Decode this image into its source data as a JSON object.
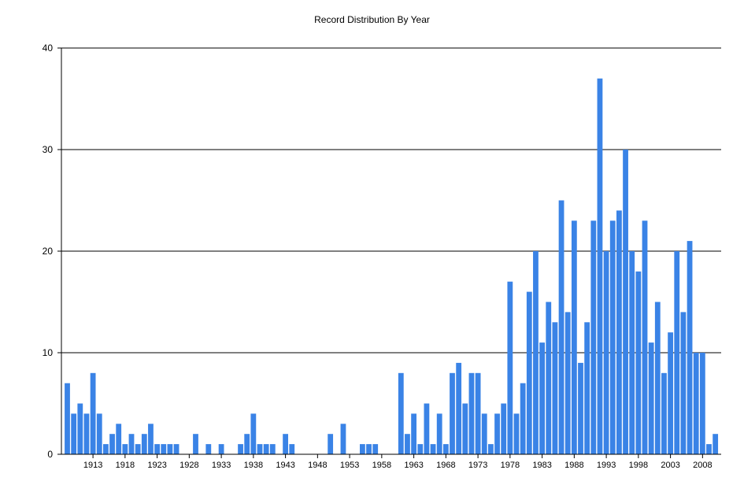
{
  "chart_data": {
    "type": "bar",
    "title": "Record Distribution By Year",
    "xlabel": "",
    "ylabel": "",
    "ylim": [
      0,
      40
    ],
    "y_ticks": [
      0,
      10,
      20,
      30,
      40
    ],
    "x_tick_labels": [
      "1913",
      "1918",
      "1923",
      "1928",
      "1933",
      "1938",
      "1943",
      "1948",
      "1953",
      "1958",
      "1963",
      "1968",
      "1973",
      "1978",
      "1983",
      "1988",
      "1993",
      "1998",
      "2003",
      "2008"
    ],
    "grid": "horizontal",
    "bar_color": "#3a83e6",
    "x": [
      1909,
      1910,
      1911,
      1912,
      1913,
      1914,
      1915,
      1916,
      1917,
      1918,
      1919,
      1920,
      1921,
      1922,
      1923,
      1924,
      1925,
      1926,
      1927,
      1928,
      1929,
      1930,
      1931,
      1932,
      1933,
      1934,
      1935,
      1936,
      1937,
      1938,
      1939,
      1940,
      1941,
      1942,
      1943,
      1944,
      1945,
      1946,
      1947,
      1948,
      1949,
      1950,
      1951,
      1952,
      1953,
      1954,
      1955,
      1956,
      1957,
      1958,
      1959,
      1960,
      1961,
      1962,
      1963,
      1964,
      1965,
      1966,
      1967,
      1968,
      1969,
      1970,
      1971,
      1972,
      1973,
      1974,
      1975,
      1976,
      1977,
      1978,
      1979,
      1980,
      1981,
      1982,
      1983,
      1984,
      1985,
      1986,
      1987,
      1988,
      1989,
      1990,
      1991,
      1992,
      1993,
      1994,
      1995,
      1996,
      1997,
      1998,
      1999,
      2000,
      2001,
      2002,
      2003,
      2004,
      2005,
      2006,
      2007,
      2008,
      2009,
      2010
    ],
    "values": [
      7,
      4,
      5,
      4,
      8,
      4,
      1,
      2,
      3,
      1,
      2,
      1,
      2,
      3,
      1,
      1,
      1,
      1,
      0,
      0,
      2,
      0,
      1,
      0,
      1,
      0,
      0,
      1,
      2,
      4,
      1,
      1,
      1,
      0,
      2,
      1,
      0,
      0,
      0,
      0,
      0,
      2,
      0,
      3,
      0,
      0,
      1,
      1,
      1,
      0,
      0,
      0,
      8,
      2,
      4,
      1,
      5,
      1,
      4,
      1,
      8,
      9,
      5,
      8,
      8,
      4,
      1,
      4,
      5,
      17,
      4,
      7,
      16,
      20,
      11,
      15,
      13,
      25,
      14,
      23,
      9,
      13,
      23,
      37,
      20,
      23,
      24,
      30,
      20,
      18,
      23,
      11,
      15,
      8,
      12,
      20,
      14,
      21,
      10,
      10,
      1,
      2
    ]
  }
}
